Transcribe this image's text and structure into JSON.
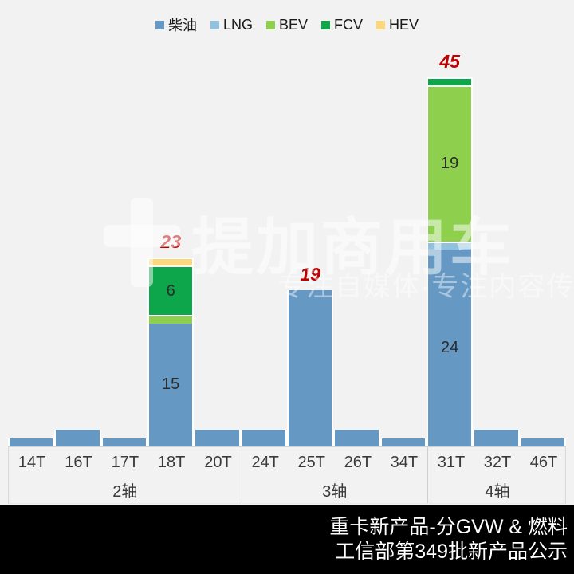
{
  "background_color": "#F2F2F2",
  "legend": [
    {
      "label": "柴油",
      "color": "#6598C3"
    },
    {
      "label": "LNG",
      "color": "#92C1DD"
    },
    {
      "label": "BEV",
      "color": "#8ED04E"
    },
    {
      "label": "FCV",
      "color": "#0EA64A"
    },
    {
      "label": "HEV",
      "color": "#FBD77D"
    }
  ],
  "chart_data": {
    "type": "bar",
    "stacked": true,
    "categories": [
      "14T",
      "16T",
      "17T",
      "18T",
      "20T",
      "24T",
      "25T",
      "26T",
      "34T",
      "31T",
      "32T",
      "46T"
    ],
    "groups": [
      {
        "label": "2轴",
        "span": 5
      },
      {
        "label": "3轴",
        "span": 4
      },
      {
        "label": "4轴",
        "span": 3
      }
    ],
    "series": [
      {
        "name": "柴油",
        "color": "#6598C3",
        "values": [
          1,
          2,
          1,
          15,
          2,
          2,
          19,
          2,
          1,
          24,
          2,
          1
        ]
      },
      {
        "name": "LNG",
        "color": "#92C1DD",
        "values": [
          0,
          0,
          0,
          0,
          0,
          0,
          0,
          0,
          0,
          1,
          0,
          0
        ]
      },
      {
        "name": "BEV",
        "color": "#8ED04E",
        "values": [
          0,
          0,
          0,
          1,
          0,
          0,
          0,
          0,
          0,
          19,
          0,
          0
        ]
      },
      {
        "name": "FCV",
        "color": "#0EA64A",
        "values": [
          0,
          0,
          0,
          6,
          0,
          0,
          0,
          0,
          0,
          1,
          0,
          0
        ]
      },
      {
        "name": "HEV",
        "color": "#FBD77D",
        "values": [
          0,
          0,
          0,
          1,
          0,
          0,
          0,
          0,
          0,
          0,
          0,
          0
        ]
      }
    ],
    "totals_labeled": [
      {
        "category": "18T",
        "total": 23
      },
      {
        "category": "25T",
        "total": 19
      },
      {
        "category": "31T",
        "total": 45
      }
    ],
    "segment_labels": [
      {
        "category": "18T",
        "series": "柴油",
        "value": 15
      },
      {
        "category": "18T",
        "series": "FCV",
        "value": 6
      },
      {
        "category": "31T",
        "series": "柴油",
        "value": 24
      },
      {
        "category": "31T",
        "series": "BEV",
        "value": 19
      }
    ],
    "total_label_color": "#BF0000",
    "ylim": [
      0,
      48
    ],
    "grid": false,
    "legend_position": "top"
  },
  "watermark": {
    "brand": "提加商用车",
    "tagline": "专注自媒体·专注内容传播"
  },
  "footer": {
    "line1": "重卡新产品-分GVW & 燃料",
    "line2": "工信部第349批新产品公示"
  }
}
